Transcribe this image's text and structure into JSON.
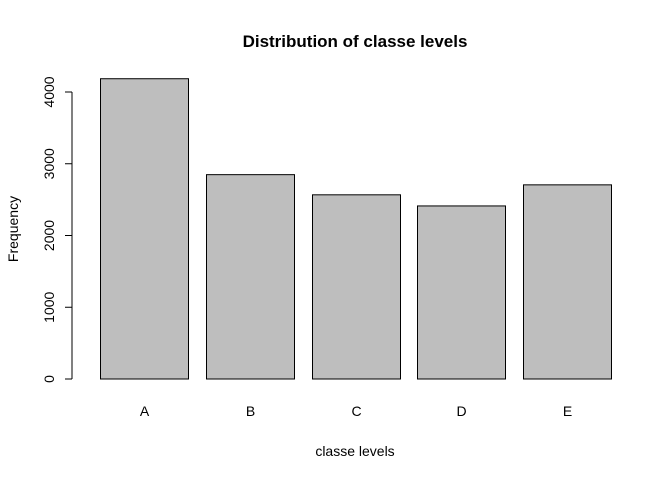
{
  "chart_data": {
    "type": "bar",
    "title": "Distribution of classe levels",
    "xlabel": "classe levels",
    "ylabel": "Frequency",
    "categories": [
      "A",
      "B",
      "C",
      "D",
      "E"
    ],
    "values": [
      4185,
      2848,
      2567,
      2412,
      2706
    ],
    "ylim": [
      0,
      4400
    ],
    "yticks": [
      0,
      1000,
      2000,
      3000,
      4000
    ],
    "ytick_labels": [
      "0",
      "1000",
      "2000",
      "3000",
      "4000"
    ],
    "grid": false,
    "bar_fill": "#bebebe",
    "bar_stroke": "#000000"
  }
}
